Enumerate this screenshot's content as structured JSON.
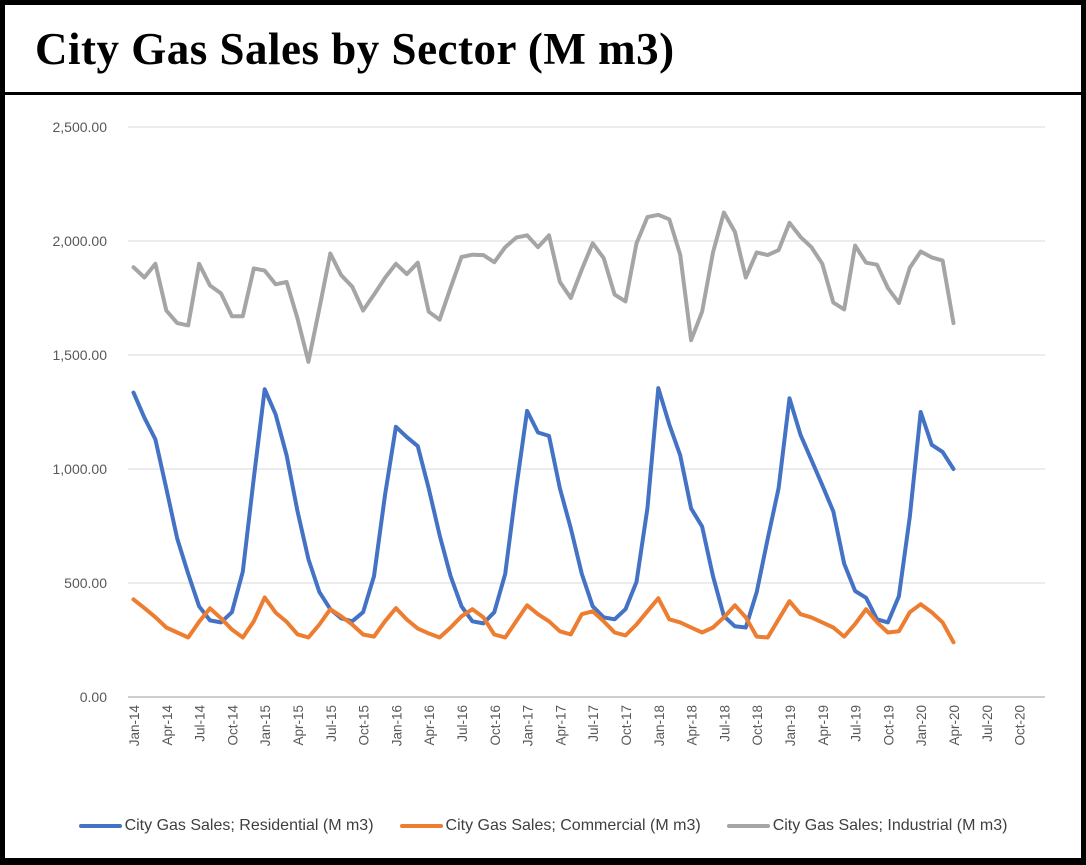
{
  "header": {
    "title": "City Gas Sales by Sector (M m3)"
  },
  "colors": {
    "background": "#FFFFFF",
    "border": "#000000",
    "grid": "#D9D9D9",
    "axis_line": "#BFBFBF",
    "tick_text": "#595959",
    "legend_text": "#3F3F3F",
    "residential": "#4472C4",
    "commercial": "#ED7D31",
    "industrial": "#A5A5A5"
  },
  "chart_data": {
    "type": "line",
    "title": "City Gas Sales by Sector (M m3)",
    "xlabel": "",
    "ylabel": "",
    "grid": true,
    "legend_position": "bottom",
    "y_axis": {
      "min": 0,
      "max": 2500,
      "step": 500,
      "tick_labels": [
        "0.00",
        "500.00",
        "1,000.00",
        "1,500.00",
        "2,000.00",
        "2,500.00"
      ]
    },
    "x_axis": {
      "first_month": "Jan-14",
      "last_data_month": "Apr-20",
      "axis_end_month": "Dec-20",
      "tick_interval_months": 3,
      "months_on_axis": 84
    },
    "x_tick_labels": [
      "Jan-14",
      "Apr-14",
      "Jul-14",
      "Oct-14",
      "Jan-15",
      "Apr-15",
      "Jul-15",
      "Oct-15",
      "Jan-16",
      "Apr-16",
      "Jul-16",
      "Oct-16",
      "Jan-17",
      "Apr-17",
      "Jul-17",
      "Oct-17",
      "Jan-18",
      "Apr-18",
      "Jul-18",
      "Oct-18",
      "Jan-19",
      "Apr-19",
      "Jul-19",
      "Oct-19",
      "Jan-20",
      "Apr-20",
      "Jul-20",
      "Oct-20"
    ],
    "x_months": [
      "Jan-14",
      "Feb-14",
      "Mar-14",
      "Apr-14",
      "May-14",
      "Jun-14",
      "Jul-14",
      "Aug-14",
      "Sep-14",
      "Oct-14",
      "Nov-14",
      "Dec-14",
      "Jan-15",
      "Feb-15",
      "Mar-15",
      "Apr-15",
      "May-15",
      "Jun-15",
      "Jul-15",
      "Aug-15",
      "Sep-15",
      "Oct-15",
      "Nov-15",
      "Dec-15",
      "Jan-16",
      "Feb-16",
      "Mar-16",
      "Apr-16",
      "May-16",
      "Jun-16",
      "Jul-16",
      "Aug-16",
      "Sep-16",
      "Oct-16",
      "Nov-16",
      "Dec-16",
      "Jan-17",
      "Feb-17",
      "Mar-17",
      "Apr-17",
      "May-17",
      "Jun-17",
      "Jul-17",
      "Aug-17",
      "Sep-17",
      "Oct-17",
      "Nov-17",
      "Dec-17",
      "Jan-18",
      "Feb-18",
      "Mar-18",
      "Apr-18",
      "May-18",
      "Jun-18",
      "Jul-18",
      "Aug-18",
      "Sep-18",
      "Oct-18",
      "Nov-18",
      "Dec-18",
      "Jan-19",
      "Feb-19",
      "Mar-19",
      "Apr-19",
      "May-19",
      "Jun-19",
      "Jul-19",
      "Aug-19",
      "Sep-19",
      "Oct-19",
      "Nov-19",
      "Dec-19",
      "Jan-20",
      "Feb-20",
      "Mar-20",
      "Apr-20"
    ],
    "series": [
      {
        "name": "City Gas Sales; Residential (M m3)",
        "color": "#4472C4",
        "values": [
          1335,
          1225,
          1130,
          915,
          695,
          540,
          398,
          336,
          327,
          372,
          550,
          960,
          1350,
          1240,
          1060,
          815,
          605,
          460,
          385,
          345,
          332,
          372,
          530,
          885,
          1185,
          1140,
          1100,
          915,
          710,
          530,
          398,
          332,
          323,
          372,
          540,
          915,
          1255,
          1160,
          1145,
          915,
          740,
          540,
          398,
          349,
          341,
          385,
          505,
          827,
          1355,
          1195,
          1060,
          827,
          748,
          530,
          355,
          310,
          305,
          460,
          694,
          916,
          1310,
          1150,
          1040,
          929,
          814,
          584,
          465,
          435,
          341,
          327,
          442,
          790,
          1250,
          1106,
          1075,
          1000
        ]
      },
      {
        "name": "City Gas Sales; Commercial (M m3)",
        "color": "#ED7D31",
        "values": [
          428,
          390,
          350,
          305,
          283,
          261,
          330,
          389,
          345,
          296,
          261,
          332,
          437,
          370,
          330,
          275,
          261,
          318,
          385,
          354,
          318,
          274,
          265,
          332,
          390,
          340,
          300,
          279,
          261,
          305,
          354,
          385,
          349,
          274,
          261,
          332,
          402,
          363,
          332,
          288,
          274,
          363,
          376,
          332,
          283,
          270,
          318,
          376,
          433,
          341,
          327,
          305,
          283,
          305,
          349,
          402,
          349,
          265,
          261,
          341,
          420,
          363,
          349,
          327,
          305,
          265,
          320,
          385,
          327,
          283,
          288,
          372,
          407,
          372,
          327,
          240
        ]
      },
      {
        "name": "City Gas Sales; Industrial (M m3)",
        "color": "#A5A5A5",
        "values": [
          1885,
          1840,
          1900,
          1695,
          1640,
          1630,
          1900,
          1805,
          1770,
          1670,
          1670,
          1880,
          1870,
          1810,
          1820,
          1660,
          1470,
          1705,
          1945,
          1850,
          1800,
          1695,
          1765,
          1838,
          1900,
          1855,
          1905,
          1690,
          1655,
          1795,
          1930,
          1940,
          1938,
          1907,
          1973,
          2015,
          2025,
          1973,
          2025,
          1820,
          1750,
          1875,
          1990,
          1925,
          1765,
          1735,
          1990,
          2105,
          2115,
          2095,
          1940,
          1565,
          1690,
          1950,
          2125,
          2040,
          1840,
          1950,
          1938,
          1960,
          2080,
          2018,
          1973,
          1900,
          1730,
          1700,
          1980,
          1905,
          1896,
          1794,
          1728,
          1883,
          1954,
          1928,
          1914,
          1640
        ]
      }
    ]
  }
}
